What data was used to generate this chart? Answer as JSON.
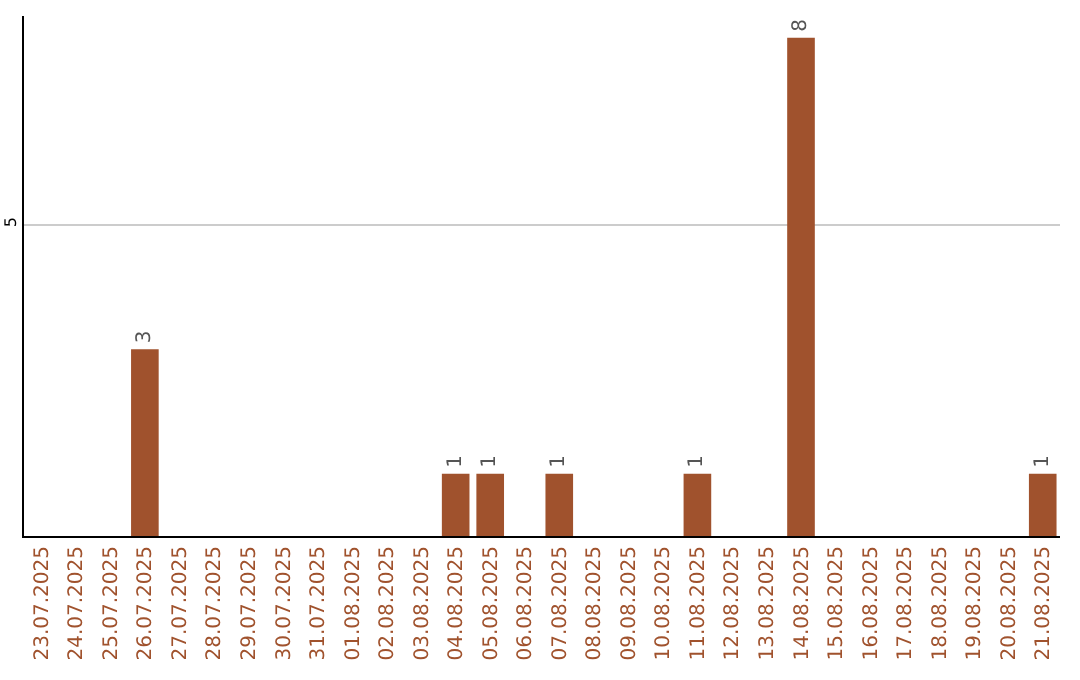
{
  "chart_data": {
    "type": "bar",
    "categories": [
      "23.07.2025",
      "24.07.2025",
      "25.07.2025",
      "26.07.2025",
      "27.07.2025",
      "28.07.2025",
      "29.07.2025",
      "30.07.2025",
      "31.07.2025",
      "01.08.2025",
      "02.08.2025",
      "03.08.2025",
      "04.08.2025",
      "05.08.2025",
      "06.08.2025",
      "07.08.2025",
      "08.08.2025",
      "09.08.2025",
      "10.08.2025",
      "11.08.2025",
      "12.08.2025",
      "13.08.2025",
      "14.08.2025",
      "15.08.2025",
      "16.08.2025",
      "17.08.2025",
      "18.08.2025",
      "19.08.2025",
      "20.08.2025",
      "21.08.2025"
    ],
    "values": [
      null,
      null,
      null,
      3,
      null,
      null,
      null,
      null,
      null,
      null,
      null,
      null,
      1,
      1,
      null,
      1,
      null,
      null,
      null,
      1,
      null,
      null,
      8,
      null,
      null,
      null,
      null,
      null,
      null,
      1
    ],
    "color": "#a0522d",
    "ylim": [
      0,
      8.35
    ],
    "yticks": [
      5
    ],
    "grid": "y",
    "data_labels": true
  }
}
